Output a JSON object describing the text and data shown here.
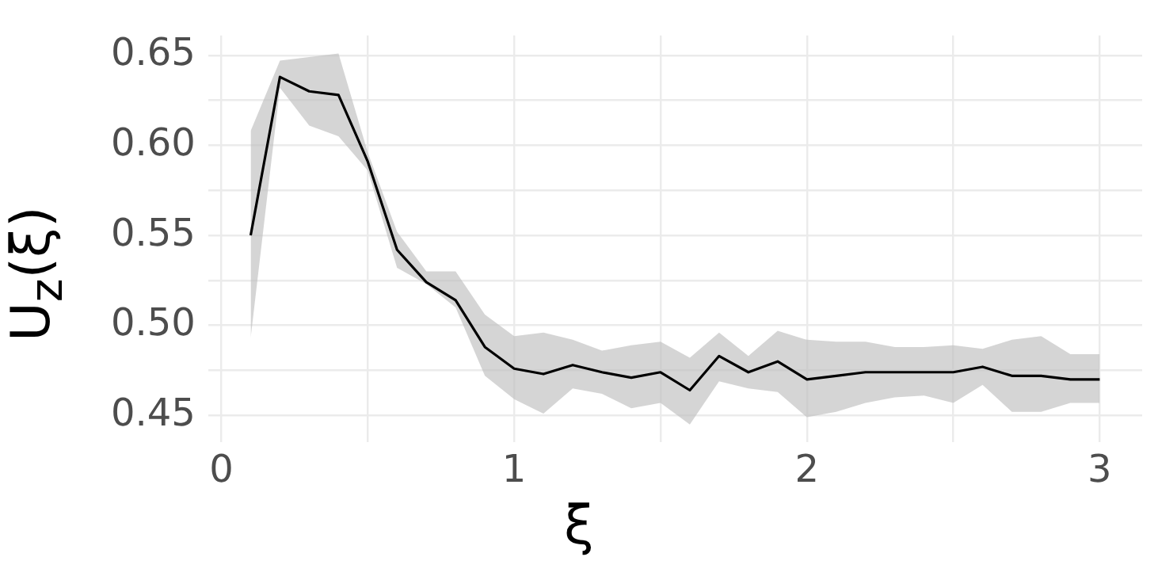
{
  "chart_data": {
    "type": "line",
    "xlabel": "ξ",
    "ylabel": "U$_{z}$(ξ)",
    "x": [
      0.1,
      0.2,
      0.3,
      0.4,
      0.5,
      0.6,
      0.7,
      0.8,
      0.9,
      1.0,
      1.1,
      1.2,
      1.3,
      1.4,
      1.5,
      1.6,
      1.7,
      1.8,
      1.9,
      2.0,
      2.1,
      2.2,
      2.3,
      2.4,
      2.5,
      2.6,
      2.7,
      2.8,
      2.9,
      3.0
    ],
    "series": [
      {
        "color": "#000000",
        "values": [
          0.55,
          0.638,
          0.63,
          0.628,
          0.591,
          0.542,
          0.524,
          0.514,
          0.488,
          0.476,
          0.473,
          0.478,
          0.474,
          0.471,
          0.474,
          0.464,
          0.483,
          0.474,
          0.48,
          0.47,
          0.472,
          0.474,
          0.474,
          0.474,
          0.474,
          0.477,
          0.472,
          0.472,
          0.47,
          0.47
        ],
        "upper": [
          0.608,
          0.647,
          0.649,
          0.651,
          0.596,
          0.552,
          0.53,
          0.53,
          0.506,
          0.494,
          0.496,
          0.492,
          0.486,
          0.489,
          0.491,
          0.482,
          0.496,
          0.483,
          0.497,
          0.492,
          0.491,
          0.491,
          0.488,
          0.488,
          0.489,
          0.487,
          0.492,
          0.494,
          0.484,
          0.484
        ],
        "lower": [
          0.493,
          0.632,
          0.611,
          0.605,
          0.586,
          0.532,
          0.523,
          0.51,
          0.472,
          0.459,
          0.451,
          0.465,
          0.462,
          0.454,
          0.457,
          0.445,
          0.469,
          0.465,
          0.463,
          0.449,
          0.452,
          0.457,
          0.46,
          0.461,
          0.457,
          0.467,
          0.452,
          0.452,
          0.457,
          0.457
        ]
      }
    ],
    "xlim": [
      -0.045,
      3.145
    ],
    "xticks": [
      0,
      {
        "value": 0.5,
        "label": null
      },
      1,
      {
        "value": 1.5,
        "label": null
      },
      2,
      {
        "value": 2.5,
        "label": null
      },
      3
    ],
    "ylim": [
      0.435,
      0.661
    ],
    "yticks": [
      0.45,
      {
        "value": 0.475,
        "label": null
      },
      {
        "value": 0.5,
        "label": "0.50"
      },
      {
        "value": 0.525,
        "label": null
      },
      0.55,
      {
        "value": 0.575,
        "label": null
      },
      {
        "value": 0.6,
        "label": "0.60"
      },
      {
        "value": 0.625,
        "label": null
      },
      0.65
    ],
    "grid": true,
    "marker": "none",
    "legend": false
  }
}
